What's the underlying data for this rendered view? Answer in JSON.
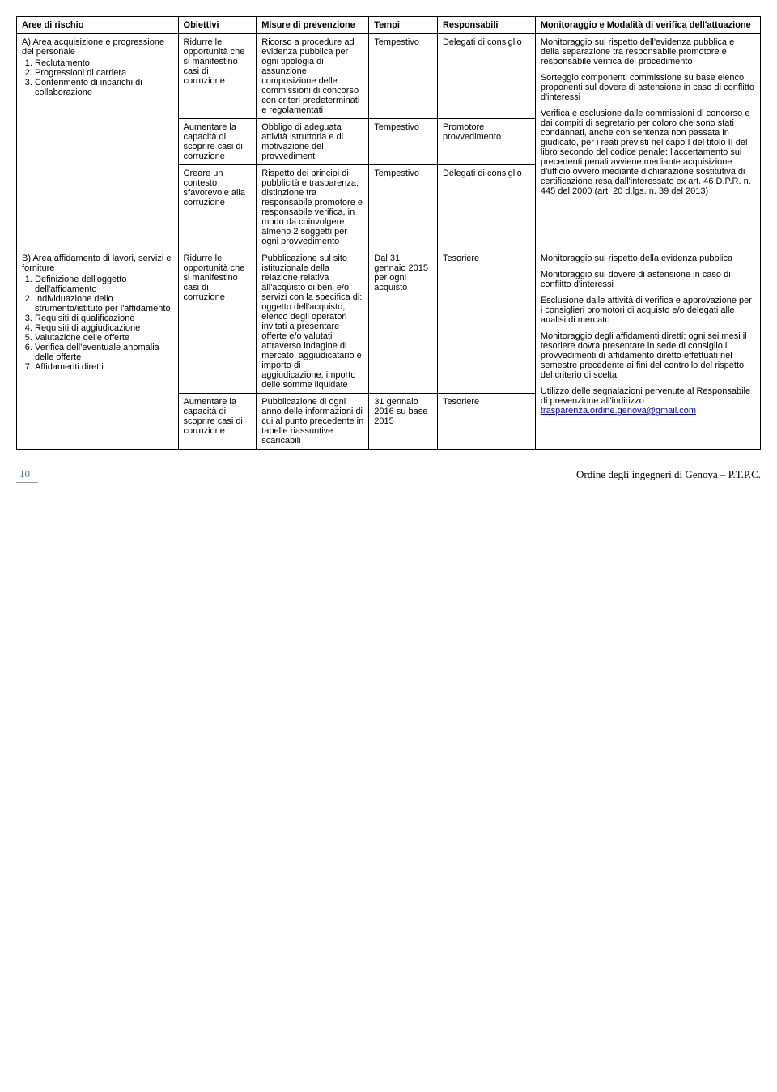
{
  "headers": {
    "area": "Aree di rischio",
    "obiettivi": "Obiettivi",
    "misure": "Misure di prevenzione",
    "tempi": "Tempi",
    "responsabili": "Responsabili",
    "monitoraggio": "Monitoraggio e Modalità di verifica dell'attuazione"
  },
  "rowA": {
    "area_title": "A) Area acquisizione e progressione del personale",
    "area_items": [
      "Reclutamento",
      "Progressioni di carriera",
      "Conferimento di incarichi di collaborazione"
    ],
    "obj1": "Ridurre le opportunità che si manifestino casi di corruzione",
    "obj2": "Aumentare la capacità di scoprire casi di corruzione",
    "obj3": "Creare un contesto sfavorevole alla corruzione",
    "mis1": "Ricorso a procedure ad evidenza pubblica per ogni tipologia di assunzione, composizione delle commissioni di concorso con criteri predeterminati e regolamentati",
    "mis2": "Obbligo di adeguata attività istruttoria e di motivazione del provvedimenti",
    "mis3": "Rispetto dei principi di pubblicità e trasparenza; distinzione tra responsabile promotore e responsabile verifica, in modo da coinvolgere almeno 2 soggetti per ogni provvedimento",
    "tem1": "Tempestivo",
    "tem2": "Tempestivo",
    "tem3": "Tempestivo",
    "resp1": "Delegati di consiglio",
    "resp2": "Promotore provvedimento",
    "resp3": "Delegati di consiglio",
    "mon_p1": "Monitoraggio sul rispetto dell'evidenza pubblica e della separazione tra responsabile promotore e responsabile verifica del procedimento",
    "mon_p2": "Sorteggio componenti commissione su base elenco proponenti sul dovere di astensione in caso di conflitto d'interessi",
    "mon_p3": " Verifica e esclusione dalle commissioni di concorso e dai compiti di segretario per coloro che sono stati condannati, anche con sentenza non passata in giudicato, per i reati previsti nel capo I del titolo II del libro secondo del codice penale: l'accertamento sui precedenti penali avviene mediante acquisizione d'ufficio ovvero mediante dichiarazione sostitutiva di certificazione resa dall'interessato ex art. 46 D.P.R. n. 445 del 2000 (art. 20 d.lgs. n. 39 del 2013)"
  },
  "rowB": {
    "area_title": "B) Area affidamento di lavori, servizi e forniture",
    "area_items": [
      "Definizione dell'oggetto dell'affidamento",
      "Individuazione dello strumento/istituto per l'affidamento",
      "Requisiti di qualificazione",
      "Requisiti di aggiudicazione",
      "Valutazione delle offerte",
      "Verifica dell'eventuale anomalia delle offerte",
      "Affidamenti diretti"
    ],
    "obj1": "Ridurre le opportunità che si manifestino casi di corruzione",
    "obj2": "Aumentare la capacità di scoprire casi di corruzione",
    "mis1": "Pubblicazione sul sito istituzionale della relazione relativa all'acquisto di beni e/o servizi con la specifica di: oggetto dell'acquisto, elenco degli operatori invitati a presentare offerte e/o valutati attraverso indagine di mercato, aggiudicatario e importo di aggiudicazione, importo delle somme liquidate",
    "mis2": "Pubblicazione di ogni anno delle informazioni di cui al punto precedente in tabelle riassuntive scaricabili",
    "tem1": "Dal 31 gennaio 2015 per ogni acquisto",
    "tem2": "31 gennaio 2016 su base 2015",
    "resp1": "Tesoriere",
    "resp2": "Tesoriere",
    "mon_p1": "Monitoraggio sul rispetto della evidenza pubblica",
    "mon_p2": "Monitoraggio sul dovere di astensione in caso di conflitto d'interessi",
    "mon_p3": "Esclusione dalle attività di verifica e approvazione per i consiglieri promotori di acquisto e/o delegati alle analisi di mercato",
    "mon_p4": "Monitoraggio degli affidamenti diretti: ogni sei mesi il tesoriere dovrà presentare in sede di consiglio i provvedimenti di affidamento diretto effettuati nel semestre precedente ai fini del controllo del rispetto del criterio di scelta",
    "mon_p5a": "Utilizzo delle segnalazioni pervenute al Responsabile di prevenzione all'indirizzo ",
    "mon_link": "trasparenza.ordine.genova@gmail.com"
  },
  "footer": {
    "page": "10",
    "title": "Ordine degli ingegneri di Genova – P.T.P.C."
  }
}
